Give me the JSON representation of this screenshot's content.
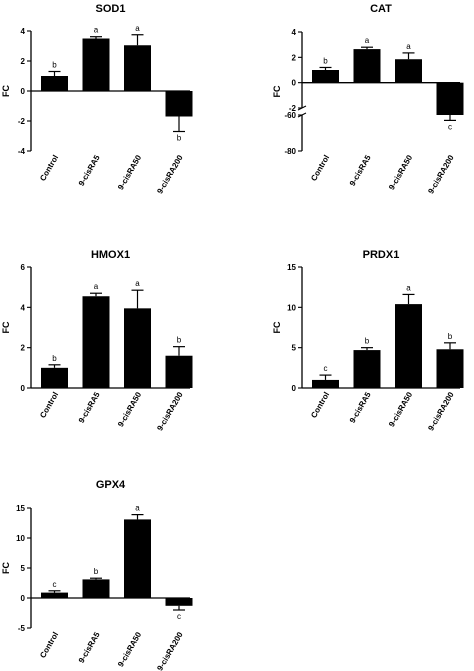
{
  "chart_data": [
    {
      "type": "bar",
      "title": "SOD1",
      "ylabel": "FC",
      "categories": [
        "Control",
        "9-cisRA5",
        "9-cisRA50",
        "9-cisRA200"
      ],
      "values": [
        1.0,
        3.5,
        3.05,
        -1.7
      ],
      "errors": [
        0.3,
        0.12,
        0.7,
        1.0
      ],
      "significance": [
        "b",
        "a",
        "a",
        "b"
      ],
      "yticks": [
        -4,
        -2,
        0,
        2,
        4
      ],
      "ylim": [
        -4,
        4
      ]
    },
    {
      "type": "bar",
      "title": "CAT",
      "ylabel": "FC",
      "categories": [
        "Control",
        "9-cisRA5",
        "9-cisRA50",
        "9-cisRA200"
      ],
      "values": [
        1.0,
        2.65,
        1.85,
        -60
      ],
      "errors": [
        0.2,
        0.15,
        0.5,
        3
      ],
      "significance": [
        "b",
        "a",
        "a",
        "c"
      ],
      "yticks": [
        -80,
        -60,
        -2,
        0,
        2,
        4
      ],
      "ylim": [
        -80,
        4
      ],
      "axis_break": [
        -2,
        -60
      ]
    },
    {
      "type": "bar",
      "title": "HMOX1",
      "ylabel": "FC",
      "categories": [
        "Control",
        "9-cisRA5",
        "9-cisRA50",
        "9-cisRA200"
      ],
      "values": [
        1.0,
        4.55,
        3.95,
        1.6
      ],
      "errors": [
        0.15,
        0.15,
        0.9,
        0.45
      ],
      "significance": [
        "b",
        "a",
        "a",
        "b"
      ],
      "yticks": [
        0,
        2,
        4,
        6
      ],
      "ylim": [
        0,
        6
      ]
    },
    {
      "type": "bar",
      "title": "PRDX1",
      "ylabel": "FC",
      "categories": [
        "Control",
        "9-cisRA5",
        "9-cisRA50",
        "9-cisRA200"
      ],
      "values": [
        1.0,
        4.7,
        10.4,
        4.8
      ],
      "errors": [
        0.6,
        0.3,
        1.2,
        0.8
      ],
      "significance": [
        "c",
        "b",
        "a",
        "b"
      ],
      "yticks": [
        0,
        5,
        10,
        15
      ],
      "ylim": [
        0,
        15
      ]
    },
    {
      "type": "bar",
      "title": "GPX4",
      "ylabel": "FC",
      "categories": [
        "Control",
        "9-cisRA5",
        "9-cisRA50",
        "9-cisRA200"
      ],
      "values": [
        0.9,
        3.1,
        13.1,
        -1.3
      ],
      "errors": [
        0.3,
        0.2,
        0.8,
        0.7
      ],
      "significance": [
        "c",
        "b",
        "a",
        "c"
      ],
      "yticks": [
        -5,
        0,
        5,
        10,
        15
      ],
      "ylim": [
        -5,
        15
      ]
    }
  ]
}
